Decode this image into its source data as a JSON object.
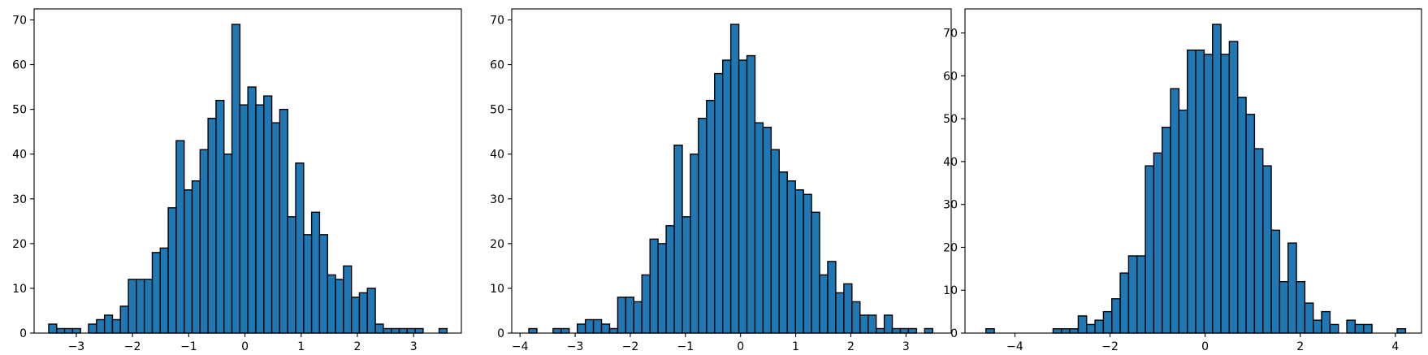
{
  "chart_data": [
    {
      "type": "bar",
      "title": "",
      "xlabel": "",
      "ylabel": "",
      "xlim": [
        -3.75,
        3.85
      ],
      "ylim": [
        0,
        72.45
      ],
      "xticks": [
        -3,
        -2,
        -1,
        0,
        1,
        2,
        3
      ],
      "yticks": [
        0,
        10,
        20,
        30,
        40,
        50,
        60,
        70
      ],
      "bin_start": -3.49,
      "bin_width": 0.1417,
      "values": [
        2,
        1,
        1,
        1,
        0,
        2,
        3,
        4,
        3,
        6,
        12,
        12,
        12,
        18,
        19,
        28,
        43,
        32,
        34,
        41,
        48,
        52,
        40,
        69,
        51,
        55,
        51,
        53,
        47,
        50,
        26,
        38,
        22,
        27,
        22,
        13,
        12,
        15,
        8,
        9,
        10,
        2,
        1,
        1,
        1,
        1,
        1,
        0,
        0,
        1
      ],
      "grid": false,
      "legend": "none",
      "colors": {
        "bar_fill": "#1f77b4",
        "bar_edge": "#000000"
      }
    },
    {
      "type": "bar",
      "title": "",
      "xlabel": "",
      "ylabel": "",
      "xlim": [
        -4.15,
        3.82
      ],
      "ylim": [
        0,
        72.45
      ],
      "xticks": [
        -4,
        -3,
        -2,
        -1,
        0,
        1,
        2,
        3
      ],
      "yticks": [
        0,
        10,
        20,
        30,
        40,
        50,
        60,
        70
      ],
      "bin_start": -3.84,
      "bin_width": 0.1465,
      "values": [
        1,
        0,
        0,
        1,
        1,
        0,
        2,
        3,
        3,
        2,
        1,
        8,
        8,
        7,
        13,
        21,
        20,
        24,
        42,
        26,
        40,
        48,
        52,
        58,
        61,
        69,
        61,
        62,
        47,
        46,
        41,
        36,
        34,
        32,
        31,
        27,
        13,
        16,
        9,
        11,
        7,
        4,
        4,
        1,
        4,
        1,
        1,
        1,
        0,
        1
      ],
      "grid": false,
      "legend": "none",
      "colors": {
        "bar_fill": "#1f77b4",
        "bar_edge": "#000000"
      }
    },
    {
      "type": "bar",
      "title": "",
      "xlabel": "",
      "ylabel": "",
      "xlim": [
        -5.05,
        4.55
      ],
      "ylim": [
        0,
        75.6
      ],
      "xticks": [
        -4,
        -2,
        0,
        2,
        4
      ],
      "yticks": [
        0,
        10,
        20,
        30,
        40,
        50,
        60,
        70
      ],
      "bin_start": -4.61,
      "bin_width": 0.1765,
      "values": [
        1,
        0,
        0,
        0,
        0,
        0,
        0,
        0,
        1,
        1,
        1,
        4,
        2,
        3,
        5,
        8,
        14,
        18,
        18,
        39,
        42,
        48,
        57,
        52,
        66,
        66,
        65,
        72,
        65,
        68,
        55,
        51,
        43,
        39,
        24,
        12,
        21,
        12,
        7,
        3,
        5,
        2,
        0,
        3,
        2,
        2,
        0,
        0,
        0,
        1
      ],
      "grid": false,
      "legend": "none",
      "colors": {
        "bar_fill": "#1f77b4",
        "bar_edge": "#000000"
      }
    }
  ]
}
